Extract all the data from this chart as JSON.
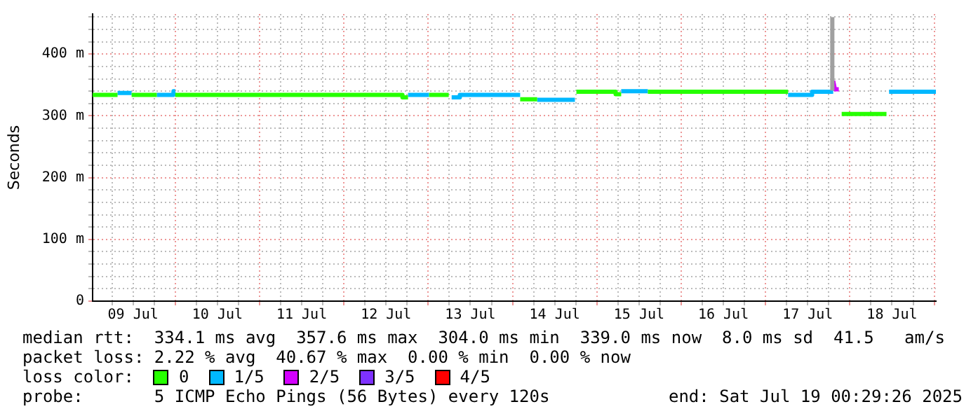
{
  "chart_data": {
    "type": "line",
    "ylabel": "Seconds",
    "legend_title": "loss color:",
    "legend": "bottom",
    "grid": true,
    "marker": "none",
    "xlim": [
      "2025-07-09T00:29",
      "2025-07-19T00:29"
    ],
    "xticks": [
      {
        "value": "2025-07-09T06:00",
        "label": null
      },
      {
        "value": "2025-07-09T12:00",
        "label": "09 Jul"
      },
      {
        "value": "2025-07-09T18:00",
        "label": null
      },
      {
        "value": "2025-07-10T00:00",
        "label": null
      },
      {
        "value": "2025-07-10T06:00",
        "label": null
      },
      {
        "value": "2025-07-10T12:00",
        "label": "10 Jul"
      },
      {
        "value": "2025-07-10T18:00",
        "label": null
      },
      {
        "value": "2025-07-11T00:00",
        "label": null
      },
      {
        "value": "2025-07-11T06:00",
        "label": null
      },
      {
        "value": "2025-07-11T12:00",
        "label": "11 Jul"
      },
      {
        "value": "2025-07-11T18:00",
        "label": null
      },
      {
        "value": "2025-07-12T00:00",
        "label": null
      },
      {
        "value": "2025-07-12T06:00",
        "label": null
      },
      {
        "value": "2025-07-12T12:00",
        "label": "12 Jul"
      },
      {
        "value": "2025-07-12T18:00",
        "label": null
      },
      {
        "value": "2025-07-13T00:00",
        "label": null
      },
      {
        "value": "2025-07-13T06:00",
        "label": null
      },
      {
        "value": "2025-07-13T12:00",
        "label": "13 Jul"
      },
      {
        "value": "2025-07-13T18:00",
        "label": null
      },
      {
        "value": "2025-07-14T00:00",
        "label": null
      },
      {
        "value": "2025-07-14T06:00",
        "label": null
      },
      {
        "value": "2025-07-14T12:00",
        "label": "14 Jul"
      },
      {
        "value": "2025-07-14T18:00",
        "label": null
      },
      {
        "value": "2025-07-15T00:00",
        "label": null
      },
      {
        "value": "2025-07-15T06:00",
        "label": null
      },
      {
        "value": "2025-07-15T12:00",
        "label": "15 Jul"
      },
      {
        "value": "2025-07-15T18:00",
        "label": null
      },
      {
        "value": "2025-07-16T00:00",
        "label": null
      },
      {
        "value": "2025-07-16T06:00",
        "label": null
      },
      {
        "value": "2025-07-16T12:00",
        "label": "16 Jul"
      },
      {
        "value": "2025-07-16T18:00",
        "label": null
      },
      {
        "value": "2025-07-17T00:00",
        "label": null
      },
      {
        "value": "2025-07-17T06:00",
        "label": null
      },
      {
        "value": "2025-07-17T12:00",
        "label": "17 Jul"
      },
      {
        "value": "2025-07-17T18:00",
        "label": null
      },
      {
        "value": "2025-07-18T00:00",
        "label": null
      },
      {
        "value": "2025-07-18T06:00",
        "label": null
      },
      {
        "value": "2025-07-18T12:00",
        "label": "18 Jul"
      },
      {
        "value": "2025-07-18T18:00",
        "label": null
      },
      {
        "value": "2025-07-19T00:00",
        "label": null
      }
    ],
    "ylim": [
      0,
      465
    ],
    "yticks": [
      0,
      {
        "value": 20,
        "label": null
      },
      {
        "value": 40,
        "label": null
      },
      {
        "value": 60,
        "label": null
      },
      {
        "value": 80,
        "label": null
      },
      {
        "value": 100,
        "label": "100 m"
      },
      {
        "value": 120,
        "label": null
      },
      {
        "value": 140,
        "label": null
      },
      {
        "value": 160,
        "label": null
      },
      {
        "value": 180,
        "label": null
      },
      {
        "value": 200,
        "label": "200 m"
      },
      {
        "value": 220,
        "label": null
      },
      {
        "value": 240,
        "label": null
      },
      {
        "value": 260,
        "label": null
      },
      {
        "value": 280,
        "label": null
      },
      {
        "value": 300,
        "label": "300 m"
      },
      {
        "value": 320,
        "label": null
      },
      {
        "value": 340,
        "label": null
      },
      {
        "value": 360,
        "label": null
      },
      {
        "value": 380,
        "label": null
      },
      {
        "value": 400,
        "label": "400 m"
      },
      {
        "value": 420,
        "label": null
      },
      {
        "value": 440,
        "label": null
      },
      {
        "value": 460,
        "label": null
      }
    ],
    "series": [
      {
        "color": "#a0a0a0",
        "x": [
          "2025-07-17T19:00",
          "2025-07-17T19:00"
        ],
        "values": [
          341,
          460
        ]
      },
      {
        "name": "0",
        "color": "#26ff00",
        "x": [
          "2025-07-09T00:29",
          "2025-07-09T07:35",
          "2025-07-09T09:00",
          "2025-07-09T11:35",
          "2025-07-09T18:45",
          "2025-07-09T21:00",
          "2025-07-10T00:00",
          "2025-07-12T16:40",
          "2025-07-12T16:40",
          "2025-07-12T18:15",
          "2025-07-12T21:00",
          "2025-07-13T00:15",
          "2025-07-13T05:50",
          "2025-07-13T12:00",
          "2025-07-14T02:10",
          "2025-07-14T07:00",
          "2025-07-14T12:00",
          "2025-07-14T18:10",
          "2025-07-15T05:20",
          "2025-07-15T05:20",
          "2025-07-15T06:55",
          "2025-07-15T10:00",
          "2025-07-15T14:30",
          "2025-07-17T06:25",
          "2025-07-17T12:00",
          "2025-07-17T21:40",
          "2025-07-18T10:25"
        ],
        "values": [
          334,
          334,
          null,
          334,
          334,
          null,
          334,
          334,
          330,
          330,
          null,
          334,
          334,
          null,
          327,
          327,
          null,
          339,
          339,
          335,
          335,
          null,
          339,
          339,
          null,
          303,
          303
        ]
      },
      {
        "name": "1/5",
        "color": "#00b8ff",
        "x": [
          "2025-07-09T07:35",
          "2025-07-09T11:35",
          "2025-07-09T15:00",
          "2025-07-09T18:45",
          "2025-07-09T23:30",
          "2025-07-09T23:30",
          "2025-07-10T00:00",
          "2025-07-11T00:00",
          "2025-07-12T18:15",
          "2025-07-13T00:15",
          "2025-07-13T03:00",
          "2025-07-13T06:40",
          "2025-07-13T09:00",
          "2025-07-13T09:00",
          "2025-07-14T02:10",
          "2025-07-14T04:00",
          "2025-07-14T07:00",
          "2025-07-14T17:45",
          "2025-07-15T00:00",
          "2025-07-15T06:55",
          "2025-07-15T14:30",
          "2025-07-16T00:00",
          "2025-07-17T06:25",
          "2025-07-17T13:15",
          "2025-07-17T13:15",
          "2025-07-17T19:15",
          "2025-07-18T00:00",
          "2025-07-18T11:10",
          "2025-07-19T00:29"
        ],
        "values": [
          337,
          337,
          null,
          334,
          334,
          340,
          340,
          null,
          334,
          334,
          null,
          330,
          330,
          334,
          334,
          null,
          326,
          326,
          null,
          340,
          340,
          null,
          334,
          334,
          339,
          339,
          null,
          339,
          339
        ]
      },
      {
        "name": "2/5",
        "color": "#d400ff",
        "x": [
          "2025-07-17T19:15",
          "2025-07-17T19:45",
          "2025-07-17T20:50"
        ],
        "values": [
          357,
          343,
          343
        ]
      },
      {
        "name": "3/5",
        "color": "#7e31ff"
      },
      {
        "name": "4/5",
        "color": "#ff0000"
      }
    ],
    "annotations": [
      "median rtt:  334.1 ms avg  357.6 ms max  304.0 ms min  339.0 ms now  8.0 ms sd  41.5   am/s",
      "packet loss: 2.22 % avg  40.67 % max  0.00 % min  0.00 % now",
      "probe:       5 ICMP Echo Pings (56 Bytes) every 120s",
      "end: Sat Jul 19 00:29:26 2025"
    ]
  }
}
